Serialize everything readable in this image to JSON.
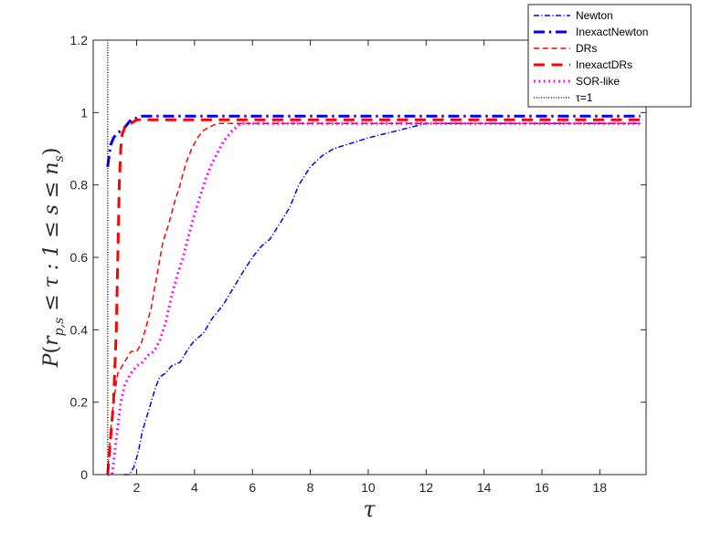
{
  "chart_data": {
    "type": "line",
    "xlabel": "τ",
    "ylabel": "P(r_{p,s} ≤ τ : 1 ≤ s ≤ n_s)",
    "ylabel_parts": {
      "P": "P",
      "open": "(",
      "r": "r",
      "sub": "p,s",
      "rest": " ≤ τ : 1 ≤ s ≤ ",
      "n": "n",
      "nsub": "s",
      "close": ")"
    },
    "xlim": [
      0.5,
      19.6
    ],
    "ylim": [
      0,
      1.2
    ],
    "xticks": [
      2,
      4,
      6,
      8,
      10,
      12,
      14,
      16,
      18
    ],
    "yticks": [
      0,
      0.2,
      0.4,
      0.6,
      0.8,
      1,
      1.2
    ],
    "xtick_labels": [
      "2",
      "4",
      "6",
      "8",
      "10",
      "12",
      "14",
      "16",
      "18"
    ],
    "ytick_labels": [
      "0",
      "0.2",
      "0.4",
      "0.6",
      "0.8",
      "1",
      "1.2"
    ],
    "grid": false,
    "legend_position": "top-right",
    "series": [
      {
        "name": "Newton",
        "color": "#0000ff",
        "style": "dashdot",
        "width": 1.5,
        "x": [
          1.55,
          1.75,
          1.9,
          2.05,
          2.2,
          2.35,
          2.5,
          2.65,
          2.8,
          3.0,
          3.2,
          3.5,
          3.8,
          4.0,
          4.3,
          4.6,
          5.0,
          5.3,
          5.6,
          6.0,
          6.3,
          6.6,
          7.0,
          7.3,
          7.6,
          8.0,
          8.4,
          8.8,
          9.2,
          9.6,
          10.0,
          10.5,
          11.0,
          11.5,
          12.0,
          13.0,
          14.0,
          15.0,
          16.0,
          17.0,
          18.0,
          19.4
        ],
        "y": [
          0.0,
          0.0,
          0.02,
          0.06,
          0.12,
          0.16,
          0.2,
          0.24,
          0.27,
          0.28,
          0.3,
          0.31,
          0.35,
          0.37,
          0.39,
          0.43,
          0.47,
          0.51,
          0.55,
          0.6,
          0.63,
          0.65,
          0.7,
          0.74,
          0.8,
          0.85,
          0.88,
          0.9,
          0.91,
          0.92,
          0.93,
          0.94,
          0.95,
          0.96,
          0.97,
          0.97,
          0.97,
          0.97,
          0.97,
          0.97,
          0.97,
          0.97
        ]
      },
      {
        "name": "InexactNewton",
        "color": "#0000ff",
        "style": "dashdot",
        "width": 3,
        "x": [
          1.0,
          1.05,
          1.1,
          1.2,
          1.3,
          1.45,
          1.6,
          1.8,
          2.0,
          2.2,
          3.0,
          5.0,
          8.0,
          12.0,
          16.0,
          19.4
        ],
        "y": [
          0.85,
          0.88,
          0.91,
          0.93,
          0.94,
          0.95,
          0.96,
          0.98,
          0.985,
          0.99,
          0.99,
          0.99,
          0.99,
          0.99,
          0.99,
          0.99
        ]
      },
      {
        "name": "DRs",
        "color": "#ff0000",
        "style": "dashed",
        "width": 1.5,
        "x": [
          1.0,
          1.1,
          1.2,
          1.35,
          1.5,
          1.65,
          1.8,
          2.0,
          2.15,
          2.3,
          2.5,
          2.7,
          2.9,
          3.1,
          3.3,
          3.5,
          3.7,
          3.9,
          4.1,
          4.3,
          4.5,
          4.8,
          5.2,
          6.0,
          8.0,
          12.0,
          16.0,
          19.4
        ],
        "y": [
          0.0,
          0.12,
          0.2,
          0.28,
          0.3,
          0.32,
          0.34,
          0.34,
          0.36,
          0.4,
          0.46,
          0.55,
          0.64,
          0.69,
          0.75,
          0.8,
          0.86,
          0.9,
          0.93,
          0.95,
          0.96,
          0.97,
          0.97,
          0.97,
          0.97,
          0.97,
          0.97,
          0.97
        ]
      },
      {
        "name": "InexactDRs",
        "color": "#ff0000",
        "style": "dashed",
        "width": 3,
        "x": [
          1.0,
          1.1,
          1.2,
          1.3,
          1.35,
          1.4,
          1.45,
          1.5,
          1.6,
          1.7,
          1.8,
          2.0,
          2.2,
          3.0,
          5.0,
          8.0,
          12.0,
          16.0,
          19.4
        ],
        "y": [
          0.0,
          0.1,
          0.2,
          0.4,
          0.6,
          0.8,
          0.9,
          0.94,
          0.96,
          0.97,
          0.97,
          0.98,
          0.98,
          0.98,
          0.98,
          0.98,
          0.98,
          0.98,
          0.98
        ]
      },
      {
        "name": "SOR-like",
        "color": "#ff00ff",
        "style": "dotted",
        "width": 3,
        "x": [
          1.0,
          1.15,
          1.3,
          1.45,
          1.6,
          1.8,
          2.0,
          2.2,
          2.4,
          2.6,
          2.8,
          3.0,
          3.2,
          3.4,
          3.6,
          3.8,
          4.0,
          4.2,
          4.4,
          4.6,
          4.8,
          5.0,
          5.3,
          5.6,
          6.0,
          8.0,
          12.0,
          16.0,
          19.4
        ],
        "y": [
          0.0,
          0.0,
          0.1,
          0.2,
          0.25,
          0.28,
          0.3,
          0.31,
          0.33,
          0.34,
          0.37,
          0.42,
          0.49,
          0.55,
          0.6,
          0.66,
          0.72,
          0.77,
          0.82,
          0.86,
          0.89,
          0.92,
          0.95,
          0.97,
          0.97,
          0.97,
          0.97,
          0.97,
          0.97
        ]
      },
      {
        "name": "τ=1",
        "color": "#000000",
        "style": "dotted",
        "width": 1.5,
        "x": [
          1.0,
          1.0
        ],
        "y": [
          0,
          1.2
        ]
      }
    ]
  }
}
